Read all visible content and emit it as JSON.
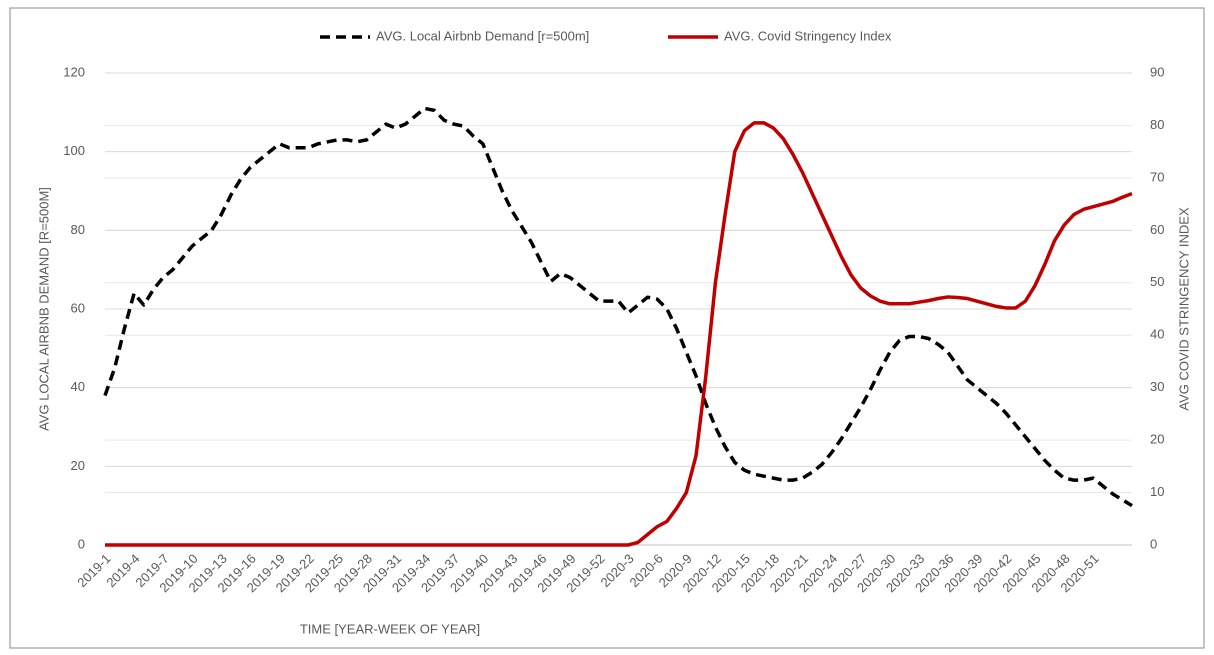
{
  "chart_data": {
    "type": "line",
    "xlabel": "TIME [YEAR-WEEK OF YEAR]",
    "ylabel": "AVG LOCAL AIRBNB DEMAND [R=500M]",
    "y2label": "AVG COVID STRINGENCY INDEX",
    "categories": [
      "2019-1",
      null,
      null,
      "2019-4",
      null,
      null,
      "2019-7",
      null,
      null,
      "2019-10",
      null,
      null,
      "2019-13",
      null,
      null,
      "2019-16",
      null,
      null,
      "2019-19",
      null,
      null,
      "2019-22",
      null,
      null,
      "2019-25",
      null,
      null,
      "2019-28",
      null,
      null,
      "2019-31",
      null,
      null,
      "2019-34",
      null,
      null,
      "2019-37",
      null,
      null,
      "2019-40",
      null,
      null,
      "2019-43",
      null,
      null,
      "2019-46",
      null,
      null,
      "2019-49",
      null,
      null,
      "2019-52",
      null,
      null,
      "2020-3",
      null,
      null,
      "2020-6",
      null,
      null,
      "2020-9",
      null,
      null,
      "2020-12",
      null,
      null,
      "2020-15",
      null,
      null,
      "2020-18",
      null,
      null,
      "2020-21",
      null,
      null,
      "2020-24",
      null,
      null,
      "2020-27",
      null,
      null,
      "2020-30",
      null,
      null,
      "2020-33",
      null,
      null,
      "2020-36",
      null,
      null,
      "2020-39",
      null,
      null,
      "2020-42",
      null,
      null,
      "2020-45",
      null,
      null,
      "2020-48",
      null,
      null,
      "2020-51",
      null,
      null,
      null,
      null
    ],
    "series": [
      {
        "name": "AVG. Local Airbnb Demand [r=500m]",
        "color": "#000000",
        "line_style": "dashed",
        "values": [
          38,
          45,
          55,
          64,
          61,
          65,
          68,
          70,
          73,
          76,
          78,
          80,
          84,
          89,
          93,
          96,
          98,
          100,
          102,
          101,
          101,
          101,
          102,
          102.5,
          103,
          103,
          102.5,
          103,
          105,
          107,
          106,
          107,
          109,
          111,
          110.5,
          108,
          107,
          106.5,
          104,
          102,
          96,
          90,
          85,
          81,
          77,
          72,
          67,
          69,
          68,
          66,
          64,
          62,
          62,
          62,
          59,
          61,
          63,
          62.5,
          60,
          55,
          49,
          43,
          36,
          30,
          25,
          21,
          19,
          18,
          17.5,
          17,
          16.5,
          16.5,
          17,
          18.5,
          20.5,
          23.5,
          27,
          31,
          35,
          39.5,
          44.5,
          49,
          52,
          53,
          53,
          52.5,
          51,
          49,
          45.5,
          42,
          40,
          38,
          36,
          33.5,
          30.5,
          27.5,
          24.5,
          21.5,
          19,
          17,
          16.5,
          16.5,
          17,
          15,
          13,
          11.5,
          10
        ]
      },
      {
        "name": "AVG. Covid Stringency Index",
        "color": "#c00000",
        "line_style": "solid",
        "axis": "y2",
        "values": [
          0,
          0,
          0,
          0,
          0,
          0,
          0,
          0,
          0,
          0,
          0,
          0,
          0,
          0,
          0,
          0,
          0,
          0,
          0,
          0,
          0,
          0,
          0,
          0,
          0,
          0,
          0,
          0,
          0,
          0,
          0,
          0,
          0,
          0,
          0,
          0,
          0,
          0,
          0,
          0,
          0,
          0,
          0,
          0,
          0,
          0,
          0,
          0,
          0,
          0,
          0,
          0,
          0,
          0,
          0,
          0.5,
          2,
          3.5,
          4.5,
          7,
          10,
          17,
          32,
          50,
          63,
          75,
          79,
          80.5,
          80.5,
          79.5,
          77.5,
          74.5,
          71,
          67,
          63,
          59,
          55,
          51.5,
          49,
          47.5,
          46.5,
          46,
          46,
          46,
          46.3,
          46.6,
          47,
          47.3,
          47.2,
          47,
          46.5,
          46,
          45.5,
          45.2,
          45.2,
          46.5,
          49.5,
          53.5,
          58,
          61,
          63,
          64,
          64.5,
          65,
          65.5,
          66.3,
          67
        ]
      }
    ],
    "ylim": [
      0,
      120
    ],
    "yticks": [
      0,
      20,
      40,
      60,
      80,
      100,
      120
    ],
    "y2lim": [
      0,
      90
    ],
    "y2ticks": [
      0,
      10,
      20,
      30,
      40,
      50,
      60,
      70,
      80,
      90
    ],
    "grid": true,
    "legend": "top"
  }
}
